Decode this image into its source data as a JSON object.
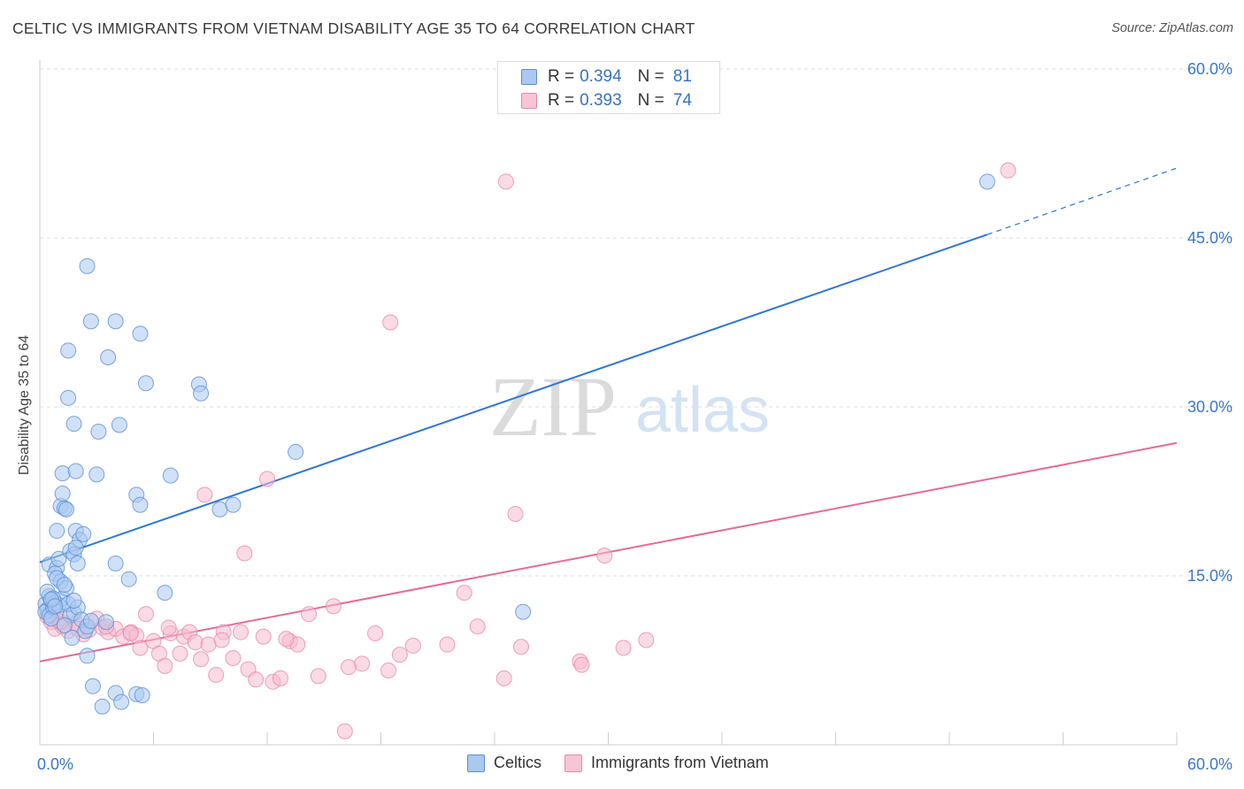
{
  "title": "CELTIC VS IMMIGRANTS FROM VIETNAM DISABILITY AGE 35 TO 64 CORRELATION CHART",
  "source": "Source: ZipAtlas.com",
  "watermark": {
    "zip": "ZIP",
    "atlas": "atlas"
  },
  "stats": [
    {
      "r_label": "R =",
      "r_value": "0.394",
      "n_label": "N =",
      "n_value": "81"
    },
    {
      "r_label": "R =",
      "r_value": "0.393",
      "n_label": "N =",
      "n_value": "74"
    }
  ],
  "legend": {
    "celtics": "Celtics",
    "vietnam": "Immigrants from Vietnam"
  },
  "colors": {
    "blue_fill": "#aac8f0",
    "blue_stroke": "#5b8fd6",
    "blue_line": "#2f76d2",
    "pink_fill": "#f6bcd0",
    "pink_stroke": "#e889a8",
    "pink_line": "#e56b96",
    "axis_text": "#3a78c8",
    "grid": "#dddddd"
  },
  "chart_data": {
    "type": "scatter",
    "title": "CELTIC VS IMMIGRANTS FROM VIETNAM DISABILITY AGE 35 TO 64 CORRELATION CHART",
    "xlabel": "",
    "ylabel": "Disability Age 35 to 64",
    "xlim": [
      0,
      60
    ],
    "ylim": [
      0,
      60
    ],
    "x_tick_labels": [
      "0.0%",
      "60.0%"
    ],
    "y_ticks": [
      15,
      30,
      45,
      60
    ],
    "y_tick_labels": [
      "15.0%",
      "30.0%",
      "45.0%",
      "60.0%"
    ],
    "series": [
      {
        "name": "Celtics",
        "r": 0.394,
        "n": 81,
        "trend": {
          "x0": 0,
          "y0": 16.2,
          "x1": 50,
          "y1": 45.3,
          "dash_to_x": 60,
          "dash_to_y": 51.2
        },
        "points": [
          [
            0.3,
            12.5
          ],
          [
            0.4,
            12.0
          ],
          [
            0.5,
            13.2
          ],
          [
            0.3,
            11.8
          ],
          [
            0.6,
            12.8
          ],
          [
            0.5,
            11.5
          ],
          [
            0.7,
            12.2
          ],
          [
            0.4,
            13.6
          ],
          [
            0.8,
            12.6
          ],
          [
            0.6,
            11.2
          ],
          [
            0.5,
            16.0
          ],
          [
            0.9,
            15.7
          ],
          [
            1.0,
            16.5
          ],
          [
            0.8,
            15.2
          ],
          [
            1.1,
            14.5
          ],
          [
            0.9,
            14.8
          ],
          [
            1.2,
            13.0
          ],
          [
            1.4,
            13.9
          ],
          [
            1.0,
            12.4
          ],
          [
            1.6,
            11.5
          ],
          [
            0.9,
            19.0
          ],
          [
            1.1,
            21.2
          ],
          [
            1.2,
            22.3
          ],
          [
            1.3,
            21.0
          ],
          [
            1.4,
            20.9
          ],
          [
            1.6,
            17.2
          ],
          [
            1.8,
            16.9
          ],
          [
            1.9,
            19.0
          ],
          [
            2.1,
            18.2
          ],
          [
            2.3,
            18.7
          ],
          [
            1.9,
            17.5
          ],
          [
            2.0,
            16.1
          ],
          [
            1.5,
            12.5
          ],
          [
            1.7,
            9.5
          ],
          [
            1.8,
            11.7
          ],
          [
            2.0,
            12.2
          ],
          [
            2.2,
            11.1
          ],
          [
            2.4,
            10.1
          ],
          [
            2.5,
            10.5
          ],
          [
            1.2,
            24.1
          ],
          [
            1.9,
            24.3
          ],
          [
            3.0,
            24.0
          ],
          [
            1.8,
            28.5
          ],
          [
            3.1,
            27.8
          ],
          [
            4.2,
            28.4
          ],
          [
            1.5,
            30.8
          ],
          [
            3.6,
            34.4
          ],
          [
            1.5,
            35.0
          ],
          [
            2.7,
            37.6
          ],
          [
            4.0,
            37.6
          ],
          [
            5.3,
            36.5
          ],
          [
            2.5,
            42.5
          ],
          [
            5.6,
            32.1
          ],
          [
            8.4,
            32.0
          ],
          [
            8.5,
            31.2
          ],
          [
            6.9,
            23.9
          ],
          [
            5.1,
            22.2
          ],
          [
            5.3,
            21.3
          ],
          [
            9.5,
            20.9
          ],
          [
            10.2,
            21.3
          ],
          [
            13.5,
            26.0
          ],
          [
            4.0,
            16.1
          ],
          [
            4.7,
            14.7
          ],
          [
            6.6,
            13.5
          ],
          [
            2.5,
            7.9
          ],
          [
            2.8,
            5.2
          ],
          [
            3.3,
            3.4
          ],
          [
            4.0,
            4.6
          ],
          [
            4.3,
            3.8
          ],
          [
            5.1,
            4.5
          ],
          [
            5.4,
            4.4
          ],
          [
            25.5,
            11.8
          ],
          [
            50.0,
            50.0
          ],
          [
            0.7,
            13.0
          ],
          [
            1.3,
            14.2
          ],
          [
            0.6,
            12.9
          ],
          [
            1.8,
            12.8
          ],
          [
            2.7,
            11.0
          ],
          [
            3.5,
            10.9
          ],
          [
            1.3,
            10.6
          ],
          [
            0.8,
            12.3
          ]
        ]
      },
      {
        "name": "Immigrants from Vietnam",
        "r": 0.393,
        "n": 74,
        "trend": {
          "x0": 0,
          "y0": 7.4,
          "x1": 60,
          "y1": 26.8
        },
        "points": [
          [
            0.4,
            11.4
          ],
          [
            0.6,
            10.9
          ],
          [
            0.8,
            10.3
          ],
          [
            1.0,
            11.0
          ],
          [
            1.2,
            10.5
          ],
          [
            1.5,
            10.1
          ],
          [
            1.9,
            10.8
          ],
          [
            2.3,
            9.8
          ],
          [
            2.6,
            10.2
          ],
          [
            3.0,
            11.2
          ],
          [
            3.3,
            10.4
          ],
          [
            3.6,
            10.0
          ],
          [
            4.0,
            10.3
          ],
          [
            4.4,
            9.6
          ],
          [
            4.8,
            10.0
          ],
          [
            5.1,
            9.7
          ],
          [
            5.3,
            8.6
          ],
          [
            5.6,
            11.6
          ],
          [
            6.0,
            9.2
          ],
          [
            6.3,
            8.1
          ],
          [
            6.6,
            7.0
          ],
          [
            6.9,
            9.9
          ],
          [
            7.4,
            8.1
          ],
          [
            7.6,
            9.6
          ],
          [
            7.9,
            10.0
          ],
          [
            8.2,
            9.1
          ],
          [
            8.5,
            7.6
          ],
          [
            8.9,
            8.9
          ],
          [
            9.3,
            6.2
          ],
          [
            9.7,
            10.0
          ],
          [
            10.2,
            7.7
          ],
          [
            10.6,
            10.0
          ],
          [
            11.0,
            6.7
          ],
          [
            11.4,
            5.8
          ],
          [
            11.8,
            9.6
          ],
          [
            12.3,
            5.6
          ],
          [
            12.7,
            5.9
          ],
          [
            13.2,
            9.2
          ],
          [
            13.6,
            8.9
          ],
          [
            14.2,
            11.6
          ],
          [
            14.7,
            6.1
          ],
          [
            15.5,
            12.3
          ],
          [
            16.3,
            6.9
          ],
          [
            17.0,
            7.2
          ],
          [
            17.7,
            9.9
          ],
          [
            18.4,
            6.6
          ],
          [
            19.0,
            8.0
          ],
          [
            19.7,
            8.8
          ],
          [
            21.5,
            8.9
          ],
          [
            22.4,
            13.5
          ],
          [
            23.1,
            10.5
          ],
          [
            24.5,
            5.9
          ],
          [
            25.4,
            8.7
          ],
          [
            28.5,
            7.4
          ],
          [
            28.6,
            7.1
          ],
          [
            29.8,
            16.8
          ],
          [
            30.8,
            8.6
          ],
          [
            32.0,
            9.3
          ],
          [
            12.0,
            23.6
          ],
          [
            8.7,
            22.2
          ],
          [
            10.8,
            17.0
          ],
          [
            25.1,
            20.5
          ],
          [
            18.5,
            37.5
          ],
          [
            24.6,
            50.0
          ],
          [
            51.1,
            51.0
          ],
          [
            16.1,
            1.2
          ],
          [
            13.0,
            9.4
          ],
          [
            3.5,
            10.5
          ],
          [
            1.1,
            10.9
          ],
          [
            0.9,
            11.9
          ],
          [
            2.0,
            10.3
          ],
          [
            4.8,
            9.9
          ],
          [
            6.8,
            10.4
          ],
          [
            9.6,
            9.3
          ]
        ]
      }
    ]
  }
}
